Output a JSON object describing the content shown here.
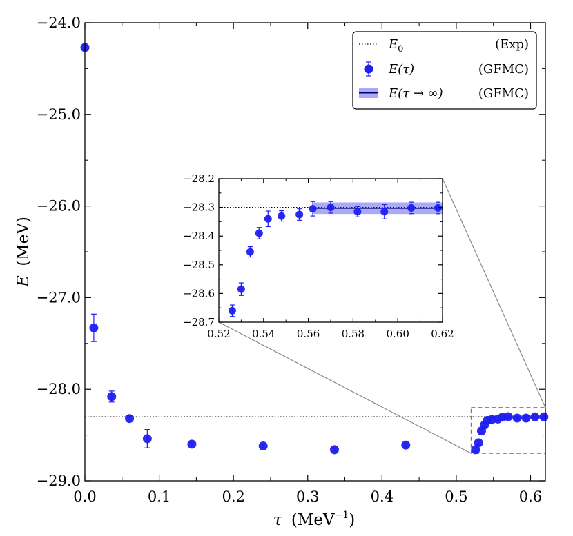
{
  "chart_data": [
    {
      "id": "main",
      "type": "scatter",
      "xlabel": {
        "symbol": "τ",
        "unit": "(MeV",
        "unit_exp": "−1",
        "unit_close": ")"
      },
      "ylabel": {
        "symbol": "E",
        "unit": "(MeV)"
      },
      "xlim": [
        0.0,
        0.62
      ],
      "ylim": [
        -29.0,
        -24.0
      ],
      "xticks": [
        0.0,
        0.1,
        0.2,
        0.3,
        0.4,
        0.5,
        0.6
      ],
      "xtick_labels": [
        "0.0",
        "0.1",
        "0.2",
        "0.3",
        "0.4",
        "0.5",
        "0.6"
      ],
      "yticks": [
        -24.0,
        -25.0,
        -26.0,
        -27.0,
        -28.0,
        -29.0
      ],
      "ytick_labels": [
        "−24.0",
        "−25.0",
        "−26.0",
        "−27.0",
        "−28.0",
        "−29.0"
      ],
      "reference_line": {
        "name": "E0 (Exp)",
        "y": -28.3,
        "style": "dotted"
      },
      "series": [
        {
          "name": "E(τ) (GFMC)",
          "color": "#1f1fef",
          "points": [
            {
              "x": 0.0,
              "y": -24.27,
              "err": 0.02
            },
            {
              "x": 0.012,
              "y": -27.33,
              "err": 0.15
            },
            {
              "x": 0.036,
              "y": -28.08,
              "err": 0.06
            },
            {
              "x": 0.06,
              "y": -28.32,
              "err": 0.03
            },
            {
              "x": 0.084,
              "y": -28.54,
              "err": 0.1
            },
            {
              "x": 0.144,
              "y": -28.6,
              "err": 0.02
            },
            {
              "x": 0.24,
              "y": -28.62,
              "err": 0.02
            },
            {
              "x": 0.336,
              "y": -28.66,
              "err": 0.02
            },
            {
              "x": 0.432,
              "y": -28.61,
              "err": 0.02
            },
            {
              "x": 0.526,
              "y": -28.66,
              "err": 0.02
            },
            {
              "x": 0.53,
              "y": -28.585,
              "err": 0.022
            },
            {
              "x": 0.534,
              "y": -28.455,
              "err": 0.018
            },
            {
              "x": 0.538,
              "y": -28.39,
              "err": 0.02
            },
            {
              "x": 0.542,
              "y": -28.34,
              "err": 0.027
            },
            {
              "x": 0.548,
              "y": -28.33,
              "err": 0.018
            },
            {
              "x": 0.556,
              "y": -28.325,
              "err": 0.02
            },
            {
              "x": 0.562,
              "y": -28.305,
              "err": 0.025
            },
            {
              "x": 0.57,
              "y": -28.3,
              "err": 0.02
            },
            {
              "x": 0.582,
              "y": -28.315,
              "err": 0.018
            },
            {
              "x": 0.594,
              "y": -28.315,
              "err": 0.025
            },
            {
              "x": 0.606,
              "y": -28.302,
              "err": 0.02
            },
            {
              "x": 0.618,
              "y": -28.302,
              "err": 0.02
            }
          ]
        }
      ],
      "extrapolation": {
        "name": "E(τ→∞) (GFMC)",
        "y": -28.303,
        "band": 0.02,
        "x_start": 0.562,
        "x_end": 0.62
      },
      "zoom_box": {
        "x": [
          0.52,
          0.62
        ],
        "y": [
          -28.7,
          -28.2
        ]
      },
      "legend": {
        "position": "top-right",
        "entries": [
          {
            "label_main": "E",
            "label_sub": "0",
            "label_rest": "",
            "tag": "(Exp)"
          },
          {
            "label_main": "E(τ)",
            "label_sub": "",
            "label_rest": "",
            "tag": "(GFMC)"
          },
          {
            "label_main": "E(τ → ∞)",
            "label_sub": "",
            "label_rest": "",
            "tag": "(GFMC)"
          }
        ]
      }
    },
    {
      "id": "inset",
      "type": "scatter",
      "xlim": [
        0.52,
        0.62
      ],
      "ylim": [
        -28.7,
        -28.2
      ],
      "xticks": [
        0.52,
        0.54,
        0.56,
        0.58,
        0.6,
        0.62
      ],
      "xtick_labels": [
        "0.52",
        "0.54",
        "0.56",
        "0.58",
        "0.60",
        "0.62"
      ],
      "yticks": [
        -28.2,
        -28.3,
        -28.4,
        -28.5,
        -28.6,
        -28.7
      ],
      "ytick_labels": [
        "−28.2",
        "−28.3",
        "−28.4",
        "−28.5",
        "−28.6",
        "−28.7"
      ]
    }
  ]
}
